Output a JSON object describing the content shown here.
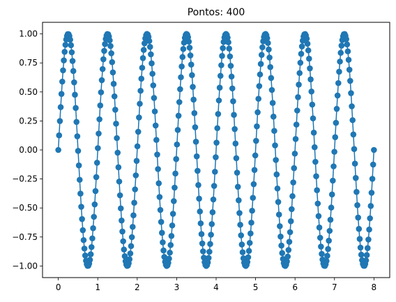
{
  "chart_data": {
    "type": "line",
    "title": "Pontos: 400",
    "xlabel": "",
    "ylabel": "",
    "xlim": [
      -0.4,
      8.4
    ],
    "ylim": [
      -1.1,
      1.1
    ],
    "x_ticks": [
      0,
      1,
      2,
      3,
      4,
      5,
      6,
      7,
      8
    ],
    "x_tick_labels": [
      "0",
      "1",
      "2",
      "3",
      "4",
      "5",
      "6",
      "7",
      "8"
    ],
    "y_ticks": [
      -1.0,
      -0.75,
      -0.5,
      -0.25,
      0.0,
      0.25,
      0.5,
      0.75,
      1.0
    ],
    "y_tick_labels": [
      "−1.00",
      "−0.75",
      "−0.50",
      "−0.25",
      "0.00",
      "0.25",
      "0.50",
      "0.75",
      "1.00"
    ],
    "grid": false,
    "legend": false,
    "series": [
      {
        "function": "sin(2*pi*x)",
        "x_start": 0,
        "x_end": 8,
        "count": 400,
        "color": "#1f77b4",
        "marker": "circle"
      }
    ]
  }
}
